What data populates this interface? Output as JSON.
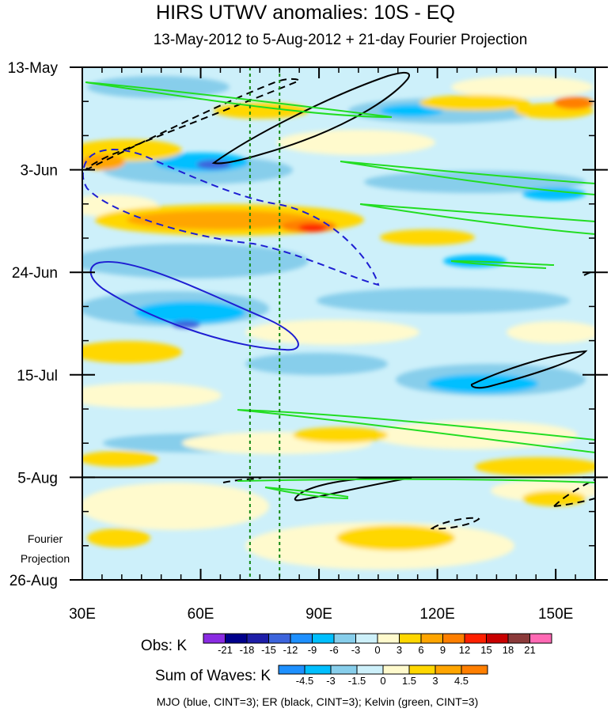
{
  "chart_data": {
    "type": "heatmap",
    "title": "HIRS UTWV anomalies: 10S - EQ",
    "subtitle": "13-May-2012 to 5-Aug-2012 + 21-day Fourier Projection",
    "x_axis": {
      "range": [
        30,
        160
      ],
      "ticks": [
        {
          "value": 30,
          "label": "30E"
        },
        {
          "value": 60,
          "label": "60E"
        },
        {
          "value": 90,
          "label": "90E"
        },
        {
          "value": 120,
          "label": "120E"
        },
        {
          "value": 150,
          "label": "150E"
        }
      ]
    },
    "y_axis": {
      "range_days": [
        0,
        105
      ],
      "ticks": [
        {
          "day": 0,
          "label": "13-May"
        },
        {
          "day": 21,
          "label": "3-Jun"
        },
        {
          "day": 42,
          "label": "24-Jun"
        },
        {
          "day": 63,
          "label": "15-Jul"
        },
        {
          "day": 84,
          "label": "5-Aug"
        },
        {
          "day": 105,
          "label": "26-Aug"
        }
      ]
    },
    "projection_label_line1": "Fourier",
    "projection_label_line2": "Projection",
    "projection_start_day": 84,
    "reference_longitudes": [
      72.5,
      80
    ],
    "obs_legend": {
      "label": "Obs: K",
      "levels": [
        "-21",
        "-18",
        "-15",
        "-12",
        "-9",
        "-6",
        "-3",
        "0",
        "3",
        "6",
        "9",
        "12",
        "15",
        "18",
        "21"
      ],
      "colors": [
        "#8a2be2",
        "#00008b",
        "#1e1ea8",
        "#3c64dc",
        "#1e90ff",
        "#00bfff",
        "#87ceeb",
        "#cdf0fa",
        "#fffacd",
        "#ffd700",
        "#ffa500",
        "#ff7f00",
        "#ff2000",
        "#c80000",
        "#8b3a3a",
        "#ff69b4"
      ]
    },
    "waves_legend": {
      "label": "Sum of Waves: K",
      "levels": [
        "-4.5",
        "-3",
        "-1.5",
        "0",
        "1.5",
        "3",
        "4.5"
      ],
      "colors": [
        "#1e90ff",
        "#00bfff",
        "#87ceeb",
        "#cdf0fa",
        "#fffacd",
        "#ffd700",
        "#ffa500",
        "#ff7f00"
      ]
    },
    "footer": "MJO (blue, CINT=3); ER (black, CINT=3); Kelvin (green, CINT=3)",
    "contours": {
      "mjo": {
        "color": "#1e1ed2",
        "label": "MJO"
      },
      "er": {
        "color": "#000000",
        "label": "ER"
      },
      "kelvin": {
        "color": "#22dd22",
        "label": "Kelvin"
      }
    }
  }
}
